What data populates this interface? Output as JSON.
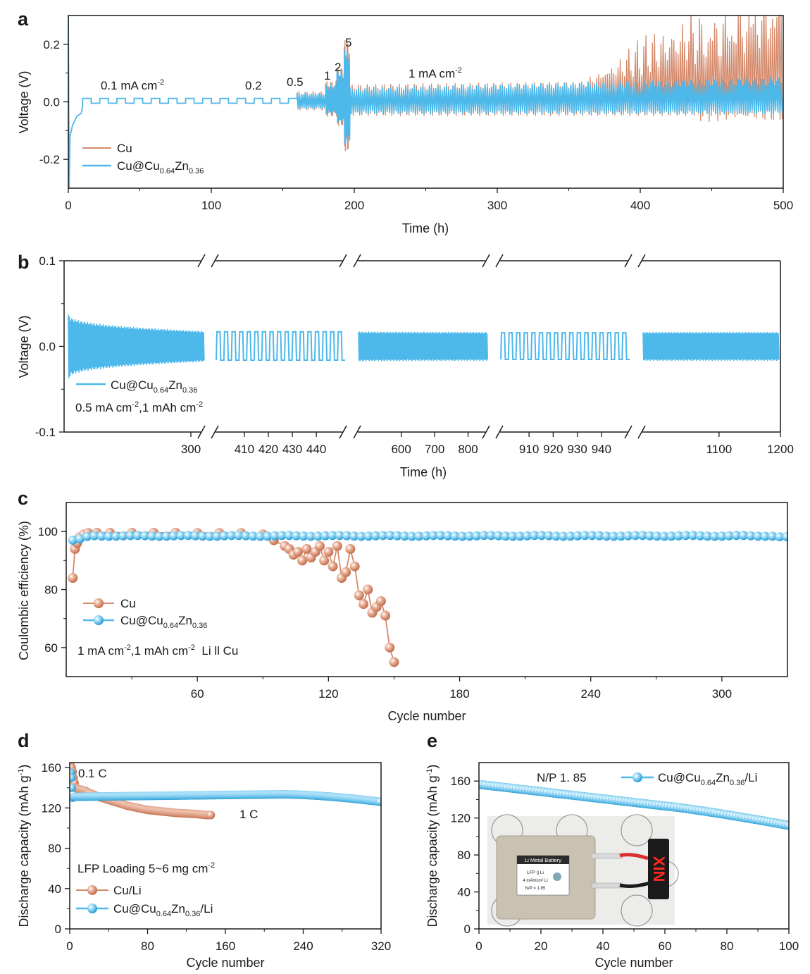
{
  "colors": {
    "cu": "#d4896a",
    "cuzn": "#4db8ea",
    "axis": "#1a1a1a"
  },
  "chart_data": [
    {
      "id": "a",
      "type": "line",
      "panel_label": "a",
      "xlabel": "Time (h)",
      "ylabel": "Voltage (V)",
      "xlim": [
        0,
        500
      ],
      "ylim": [
        -0.3,
        0.3
      ],
      "x_ticks": [
        "0",
        "100",
        "200",
        "300",
        "400",
        "500"
      ],
      "y_ticks": [
        "0.2",
        "0.0",
        "-0.2"
      ],
      "annotations": [
        "0.1 mA cm",
        "-2",
        "0.2",
        "0.5",
        "1",
        "2",
        "5",
        "1 mA cm",
        "-2"
      ],
      "legend": [
        {
          "label": "Cu",
          "color": "#d4896a"
        },
        {
          "label": "Cu@Cu",
          "sub1": "0.64",
          "mid": "Zn",
          "sub2": "0.36",
          "color": "#4db8ea"
        }
      ],
      "series": [
        {
          "name": "Cu",
          "segments": [
            {
              "t": [
                10,
                160
              ],
              "rate": "0.1 mA cm-2",
              "amp": 0.012
            },
            {
              "t": [
                160,
                180
              ],
              "rate": "0.5 mA cm-2",
              "amp": 0.03
            },
            {
              "t": [
                180,
                188
              ],
              "rate": "1 mA cm-2",
              "amp": 0.06
            },
            {
              "t": [
                188,
                193
              ],
              "rate": "2 mA cm-2",
              "amp": 0.1
            },
            {
              "t": [
                193,
                197
              ],
              "rate": "5 mA cm-2",
              "amp": 0.18
            },
            {
              "t": [
                200,
                500
              ],
              "rate": "1 mA cm-2",
              "amp_start": 0.05,
              "amp_end": 0.3
            }
          ]
        },
        {
          "name": "Cu@Cu0.64Zn0.36",
          "segments": [
            {
              "t": [
                10,
                160
              ],
              "rate": "0.1 mA cm-2",
              "amp": 0.012
            },
            {
              "t": [
                160,
                180
              ],
              "rate": "0.5 mA cm-2",
              "amp": 0.025
            },
            {
              "t": [
                180,
                188
              ],
              "rate": "1 mA cm-2",
              "amp": 0.05
            },
            {
              "t": [
                188,
                193
              ],
              "rate": "2 mA cm-2",
              "amp": 0.09
            },
            {
              "t": [
                193,
                197
              ],
              "rate": "5 mA cm-2",
              "amp": 0.15
            },
            {
              "t": [
                200,
                500
              ],
              "rate": "1 mA cm-2",
              "amp_start": 0.04,
              "amp_end": 0.07
            }
          ]
        }
      ]
    },
    {
      "id": "b",
      "type": "line",
      "panel_label": "b",
      "xlabel": "Time (h)",
      "ylabel": "Voltage (V)",
      "ylim": [
        -0.1,
        0.1
      ],
      "x_ticks": [
        "300",
        "410",
        "420",
        "430",
        "440",
        "600",
        "700",
        "800",
        "910",
        "920",
        "930",
        "940",
        "1100",
        "1200"
      ],
      "y_ticks": [
        "0.1",
        "0.0",
        "-0.1"
      ],
      "annotations": [
        "0.5 mA cm",
        "-2",
        ",1 mAh cm",
        "-2"
      ],
      "legend": [
        {
          "label": "Cu@Cu",
          "sub1": "0.64",
          "mid": "Zn",
          "sub2": "0.36",
          "color": "#4db8ea"
        }
      ],
      "series": [
        {
          "name": "Cu@Cu0.64Zn0.36",
          "segments": [
            {
              "t": [
                0,
                330
              ],
              "start_amp": 0.037,
              "end_amp": 0.017,
              "style": "dense"
            },
            {
              "t": [
                400,
                450
              ],
              "amp": 0.017,
              "style": "square"
            },
            {
              "t": [
                500,
                830
              ],
              "amp": 0.016,
              "style": "dense"
            },
            {
              "t": [
                900,
                950
              ],
              "amp": 0.016,
              "style": "square"
            },
            {
              "t": [
                1000,
                1200
              ],
              "amp": 0.016,
              "style": "dense"
            }
          ]
        }
      ]
    },
    {
      "id": "c",
      "type": "scatter",
      "panel_label": "c",
      "xlabel": "Cycle number",
      "ylabel": "Coulombic efficiency (%)",
      "xlim": [
        0,
        330
      ],
      "ylim": [
        50,
        110
      ],
      "x_ticks": [
        "60",
        "120",
        "180",
        "240",
        "300"
      ],
      "y_ticks": [
        "100",
        "80",
        "60"
      ],
      "annotations": [
        "1 mA cm",
        "-2",
        ",1 mAh cm",
        "-2",
        "  Li ll Cu"
      ],
      "legend": [
        {
          "label": "Cu",
          "color": "#d4896a"
        },
        {
          "label": "Cu@Cu",
          "sub1": "0.64",
          "mid": "Zn",
          "sub2": "0.36",
          "color": "#4db8ea"
        }
      ],
      "series": [
        {
          "name": "Cu",
          "x": [
            3,
            4,
            5,
            6,
            8,
            10,
            14,
            20,
            30,
            40,
            50,
            60,
            70,
            80,
            90,
            95,
            100,
            102,
            104,
            106,
            108,
            110,
            112,
            114,
            116,
            118,
            120,
            122,
            124,
            126,
            128,
            130,
            132,
            134,
            136,
            138,
            140,
            142,
            144,
            146,
            148,
            150
          ],
          "y": [
            84,
            94,
            96,
            98,
            99,
            99.5,
            99.6,
            99.6,
            99.6,
            99.6,
            99.6,
            99.5,
            99.5,
            99.5,
            99,
            97,
            95,
            94,
            92,
            93,
            90,
            94,
            91,
            93,
            95,
            90,
            93,
            88,
            95,
            84,
            86,
            94,
            88,
            78,
            75,
            80,
            72,
            74,
            76,
            71,
            60,
            55
          ]
        },
        {
          "name": "Cu@Cu0.64Zn0.36",
          "x_start": 3,
          "x_end": 330,
          "x_step": 3.3,
          "y_first": [
            97,
            97.5,
            98.3
          ],
          "y_plateau": 98.5,
          "y_last": 98.2
        }
      ]
    },
    {
      "id": "d",
      "type": "scatter",
      "panel_label": "d",
      "xlabel": "Cycle number",
      "ylabel": "Discharge capacity (mAh g",
      "ylabel_sup": "-1",
      "ylabel_tail": ")",
      "xlim": [
        0,
        320
      ],
      "ylim": [
        0,
        165
      ],
      "x_ticks": [
        "0",
        "80",
        "160",
        "240",
        "320"
      ],
      "y_ticks": [
        "160",
        "120",
        "80",
        "40",
        "0"
      ],
      "annotations": [
        "0.1 C",
        "1 C",
        "LFP Loading 5~6 mg cm",
        "-2"
      ],
      "legend": [
        {
          "label": "Cu/Li",
          "color": "#d4896a"
        },
        {
          "label": "Cu@Cu",
          "sub1": "0.64",
          "mid": "Zn",
          "sub2": "0.36",
          "tail": "/Li",
          "color": "#4db8ea"
        }
      ],
      "series": [
        {
          "name": "Cu/Li",
          "x": [
            1,
            2,
            3,
            4,
            5,
            6,
            8,
            10,
            12,
            14,
            16,
            18,
            20,
            25,
            30,
            40,
            50,
            60,
            70,
            80,
            90,
            100,
            110,
            120,
            130,
            140,
            145
          ],
          "y": [
            162,
            160,
            156,
            150,
            145,
            140,
            139,
            138.5,
            138,
            137.5,
            137,
            136,
            135,
            133,
            131,
            128,
            125,
            122,
            120,
            118,
            117,
            116,
            115,
            114.5,
            114,
            113,
            113
          ]
        },
        {
          "name": "Cu@Cu0.64Zn0.36/Li",
          "x_start": 1,
          "x_end": 320,
          "y_first": [
            155,
            150,
            140,
            130
          ],
          "y_plateau": 131,
          "y_last": 126
        }
      ]
    },
    {
      "id": "e",
      "type": "scatter",
      "panel_label": "e",
      "xlabel": "Cycle number",
      "ylabel": "Discharge capacity (mAh g",
      "ylabel_sup": "-1",
      "ylabel_tail": ")",
      "xlim": [
        0,
        100
      ],
      "ylim": [
        0,
        180
      ],
      "x_ticks": [
        "0",
        "20",
        "40",
        "60",
        "80",
        "100"
      ],
      "y_ticks": [
        "160",
        "120",
        "80",
        "40",
        "0"
      ],
      "annotations": [
        "N/P 1. 85"
      ],
      "legend": [
        {
          "label": "Cu@Cu",
          "sub1": "0.64",
          "mid": "Zn",
          "sub2": "0.36",
          "tail": "/Li",
          "color": "#4db8ea"
        }
      ],
      "inset": {
        "pouch_label": "Li Metal Battery",
        "pouch_lines": [
          "LFP || Li",
          "4 mAh/cm² Li",
          "N/P = 1.85"
        ],
        "led_text": "XIN"
      },
      "series": [
        {
          "name": "Cu@Cu0.64Zn0.36/Li",
          "x_start": 1,
          "x_end": 100,
          "y_start": 156,
          "y_mid": 133,
          "y_end": 112
        }
      ]
    }
  ]
}
